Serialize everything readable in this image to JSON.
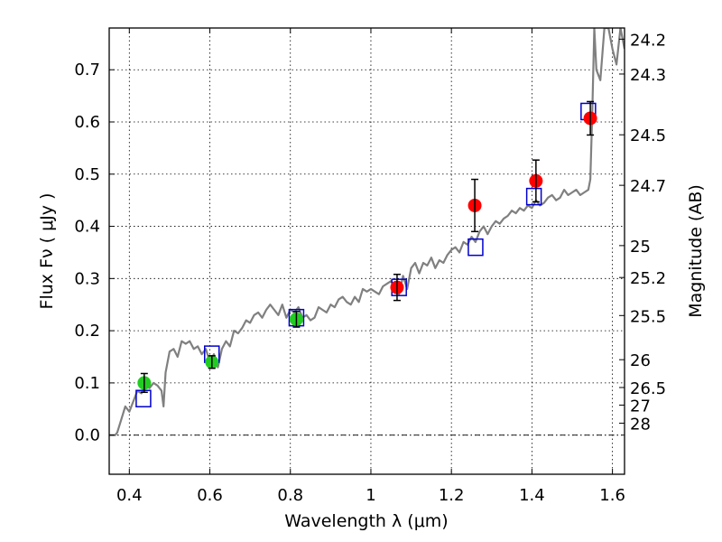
{
  "chart_data": {
    "type": "scatter",
    "xlabel": "Wavelength  λ (μm)",
    "ylabel": "Flux  Fν  ( μJy )",
    "y2label": "Magnitude (AB)",
    "xlim": [
      0.35,
      1.63
    ],
    "ylim": [
      -0.075,
      0.78
    ],
    "grid": true,
    "x_ticks": [
      0.4,
      0.6,
      0.8,
      1.0,
      1.2,
      1.4,
      1.6
    ],
    "x_tick_labels": [
      "0.4",
      "0.6",
      "0.8",
      "1",
      "1.2",
      "1.4",
      "1.6"
    ],
    "y_ticks": [
      0.0,
      0.1,
      0.2,
      0.3,
      0.4,
      0.5,
      0.6,
      0.7
    ],
    "y_tick_labels": [
      "0.0",
      "0.1",
      "0.2",
      "0.3",
      "0.4",
      "0.5",
      "0.6",
      "0.7"
    ],
    "mag_ticks": [
      {
        "label": "24.2",
        "flux": 0.7586
      },
      {
        "label": "24.3",
        "flux": 0.6918
      },
      {
        "label": "24.5",
        "flux": 0.5754
      },
      {
        "label": "24.7",
        "flux": 0.4786
      },
      {
        "label": "25",
        "flux": 0.3631
      },
      {
        "label": "25.2",
        "flux": 0.302
      },
      {
        "label": "25.5",
        "flux": 0.2291
      },
      {
        "label": "26",
        "flux": 0.1445
      },
      {
        "label": "26.5",
        "flux": 0.0912
      },
      {
        "label": "27",
        "flux": 0.0575
      },
      {
        "label": "28",
        "flux": 0.0229
      }
    ],
    "model_spectrum": {
      "color": "#808080",
      "x": [
        0.35,
        0.365,
        0.37,
        0.38,
        0.39,
        0.4,
        0.41,
        0.42,
        0.43,
        0.44,
        0.45,
        0.46,
        0.47,
        0.48,
        0.485,
        0.49,
        0.5,
        0.51,
        0.52,
        0.53,
        0.54,
        0.55,
        0.56,
        0.57,
        0.58,
        0.59,
        0.6,
        0.61,
        0.62,
        0.63,
        0.64,
        0.65,
        0.66,
        0.67,
        0.68,
        0.69,
        0.7,
        0.71,
        0.72,
        0.73,
        0.74,
        0.75,
        0.76,
        0.77,
        0.78,
        0.79,
        0.8,
        0.81,
        0.82,
        0.83,
        0.84,
        0.85,
        0.86,
        0.87,
        0.88,
        0.89,
        0.9,
        0.91,
        0.92,
        0.93,
        0.94,
        0.95,
        0.96,
        0.97,
        0.98,
        0.99,
        1.0,
        1.01,
        1.02,
        1.03,
        1.04,
        1.05,
        1.06,
        1.07,
        1.08,
        1.09,
        1.1,
        1.11,
        1.12,
        1.13,
        1.14,
        1.15,
        1.16,
        1.17,
        1.18,
        1.19,
        1.2,
        1.21,
        1.22,
        1.23,
        1.24,
        1.25,
        1.26,
        1.27,
        1.28,
        1.29,
        1.3,
        1.31,
        1.32,
        1.33,
        1.34,
        1.35,
        1.36,
        1.37,
        1.38,
        1.39,
        1.4,
        1.41,
        1.42,
        1.43,
        1.44,
        1.45,
        1.46,
        1.47,
        1.48,
        1.49,
        1.5,
        1.51,
        1.52,
        1.53,
        1.54,
        1.545,
        1.55,
        1.555,
        1.56,
        1.57,
        1.58,
        1.59,
        1.6,
        1.61,
        1.62,
        1.63
      ],
      "y": [
        0.0,
        0.0,
        0.005,
        0.03,
        0.055,
        0.045,
        0.065,
        0.085,
        0.08,
        0.095,
        0.09,
        0.1,
        0.095,
        0.085,
        0.055,
        0.12,
        0.16,
        0.165,
        0.15,
        0.18,
        0.175,
        0.18,
        0.165,
        0.17,
        0.155,
        0.165,
        0.14,
        0.155,
        0.13,
        0.165,
        0.18,
        0.17,
        0.2,
        0.195,
        0.205,
        0.22,
        0.215,
        0.23,
        0.235,
        0.225,
        0.24,
        0.25,
        0.24,
        0.23,
        0.25,
        0.225,
        0.24,
        0.235,
        0.245,
        0.225,
        0.23,
        0.22,
        0.225,
        0.245,
        0.24,
        0.235,
        0.25,
        0.245,
        0.26,
        0.265,
        0.255,
        0.25,
        0.265,
        0.255,
        0.28,
        0.275,
        0.28,
        0.275,
        0.27,
        0.285,
        0.29,
        0.295,
        0.285,
        0.27,
        0.305,
        0.28,
        0.32,
        0.33,
        0.31,
        0.33,
        0.325,
        0.34,
        0.32,
        0.335,
        0.33,
        0.345,
        0.355,
        0.36,
        0.35,
        0.37,
        0.365,
        0.38,
        0.37,
        0.39,
        0.4,
        0.385,
        0.4,
        0.41,
        0.405,
        0.415,
        0.42,
        0.43,
        0.425,
        0.435,
        0.43,
        0.44,
        0.435,
        0.45,
        0.44,
        0.445,
        0.455,
        0.46,
        0.45,
        0.455,
        0.47,
        0.46,
        0.465,
        0.47,
        0.46,
        0.465,
        0.47,
        0.49,
        0.62,
        0.78,
        0.7,
        0.68,
        0.78,
        0.78,
        0.74,
        0.71,
        0.78,
        0.74
      ]
    },
    "series": [
      {
        "marker": "square",
        "color": "#0000cc",
        "x": [
          0.435,
          0.605,
          0.815,
          1.07,
          1.26,
          1.405,
          1.54
        ],
        "y": [
          0.07,
          0.155,
          0.225,
          0.283,
          0.36,
          0.457,
          0.62
        ]
      },
      {
        "marker": "circle",
        "color": "#22cc22",
        "x": [
          0.437,
          0.605,
          0.815
        ],
        "y": [
          0.1,
          0.14,
          0.222
        ],
        "err": [
          0.018,
          0.012,
          0.015
        ]
      },
      {
        "marker": "circle",
        "color": "#ff0000",
        "x": [
          1.065,
          1.258,
          1.41,
          1.545
        ],
        "y": [
          0.283,
          0.44,
          0.487,
          0.607
        ],
        "err": [
          0.025,
          0.05,
          0.04,
          0.032
        ]
      }
    ]
  }
}
